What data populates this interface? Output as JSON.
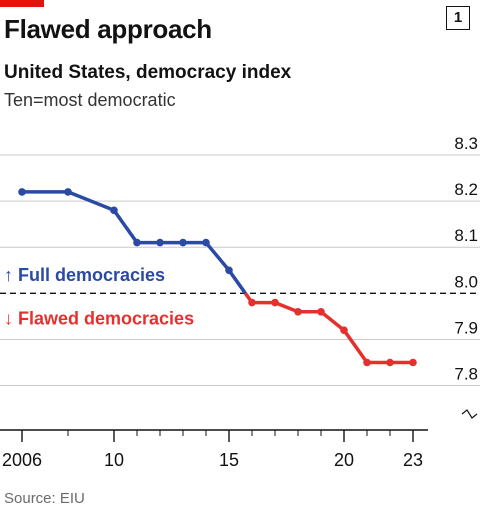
{
  "header": {
    "title": "Flawed approach",
    "chart_number": "1",
    "subtitle": "United States, democracy index",
    "unit_note": "Ten=most democratic"
  },
  "footer": {
    "source": "Source: EIU"
  },
  "colors": {
    "accent_red": "#e3120b",
    "full_democracy_line": "#2b4aa3",
    "flawed_democracy_line": "#e5312e",
    "grid": "#c9c9c9",
    "text": "#121212"
  },
  "chart_data": {
    "type": "line",
    "title": "Flawed approach",
    "subtitle": "United States, democracy index",
    "ylabel": "Ten=most democratic",
    "x": [
      2006,
      2008,
      2010,
      2011,
      2012,
      2013,
      2014,
      2015,
      2016,
      2017,
      2018,
      2019,
      2020,
      2021,
      2022,
      2023
    ],
    "values": [
      8.22,
      8.22,
      8.18,
      8.11,
      8.11,
      8.11,
      8.11,
      8.05,
      7.98,
      7.98,
      7.96,
      7.96,
      7.92,
      7.85,
      7.85,
      7.85
    ],
    "ylim": [
      7.76,
      8.3
    ],
    "xlim": [
      2006,
      2023
    ],
    "y_ticks": [
      7.8,
      7.9,
      8.0,
      8.1,
      8.2,
      8.3
    ],
    "y_tick_labels": [
      "7.8",
      "7.9",
      "8.0",
      "8.1",
      "8.2",
      "8.3"
    ],
    "x_ticks": [
      2006,
      2010,
      2015,
      2020,
      2023
    ],
    "x_tick_labels": [
      "2006",
      "10",
      "15",
      "20",
      "23"
    ],
    "threshold": 8.0,
    "grid": true,
    "axis_break": true,
    "annotations": [
      {
        "text": "↑ Full democracies",
        "x": 2006,
        "y": 8.04,
        "color": "#2b4aa3"
      },
      {
        "text": "↓ Flawed democracies",
        "x": 2006,
        "y": 7.945,
        "color": "#e5312e"
      }
    ]
  }
}
